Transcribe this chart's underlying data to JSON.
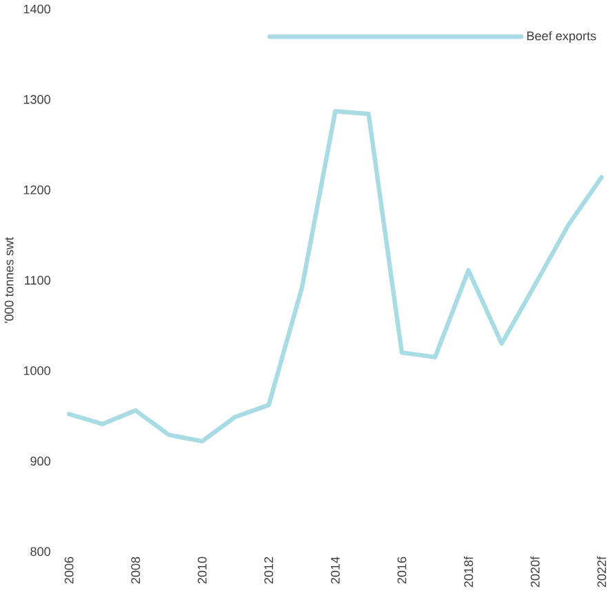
{
  "chart_data": {
    "type": "line",
    "ylabel": "'000 tonnes swt",
    "categories": [
      "2006",
      null,
      "2008",
      null,
      "2010",
      null,
      "2012",
      null,
      "2014",
      null,
      "2016",
      null,
      "2018f",
      null,
      "2020f",
      null,
      "2022f"
    ],
    "series": [
      {
        "name": "Beef exports",
        "color": "#a9dbe4",
        "values": [
          952,
          941,
          956,
          929,
          922,
          949,
          962,
          1092,
          1287,
          1284,
          1020,
          1015,
          1111,
          1030,
          1095,
          1161,
          1214
        ]
      }
    ],
    "ylim": [
      800,
      1400
    ],
    "yticks": [
      800,
      900,
      1000,
      1100,
      1200,
      1300,
      1400
    ],
    "grid": false,
    "legend": "top right",
    "marker": "none",
    "line_style": "solid"
  }
}
